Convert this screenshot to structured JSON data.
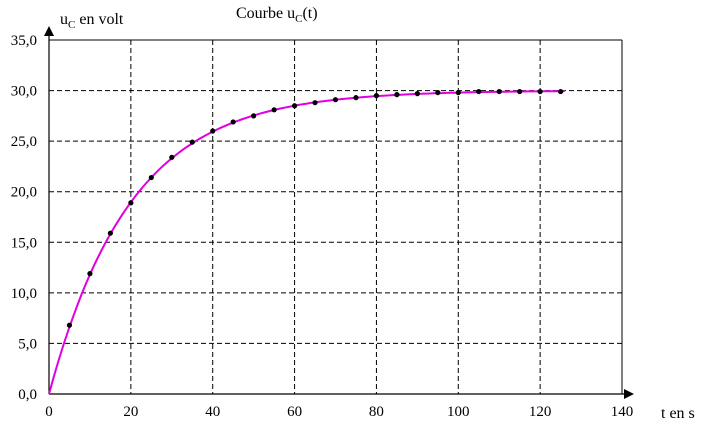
{
  "chart_data": {
    "type": "scatter",
    "title_main": "Courbe u",
    "title_sub": "C",
    "title_end": "(t)",
    "ylabel_main": "u",
    "ylabel_sub": "C",
    "ylabel_end": " en volt",
    "xlabel": "t en s",
    "xlim": [
      0,
      140
    ],
    "ylim": [
      0,
      35
    ],
    "x_ticks": [
      "0",
      "20",
      "40",
      "60",
      "80",
      "100",
      "120",
      "140"
    ],
    "y_ticks": [
      "0,0",
      "5,0",
      "10,0",
      "15,0",
      "20,0",
      "25,0",
      "30,0",
      "35,0"
    ],
    "grid": true,
    "colors": {
      "curve": "#e000e0",
      "points": "#000000",
      "grid": "#000000"
    },
    "series": [
      {
        "x": [
          5,
          10,
          15,
          20,
          25,
          30,
          35,
          40,
          45,
          50,
          55,
          60,
          65,
          70,
          75,
          80,
          85,
          90,
          95,
          100,
          105,
          110,
          115,
          120,
          125
        ],
        "y": [
          6.8,
          11.9,
          15.9,
          18.9,
          21.4,
          23.4,
          24.9,
          26.0,
          26.9,
          27.5,
          28.1,
          28.5,
          28.8,
          29.1,
          29.3,
          29.5,
          29.6,
          29.7,
          29.8,
          29.8,
          29.9,
          29.9,
          29.9,
          29.9,
          29.9
        ]
      }
    ],
    "model_curve": {
      "E": 30,
      "tau": 20
    }
  }
}
